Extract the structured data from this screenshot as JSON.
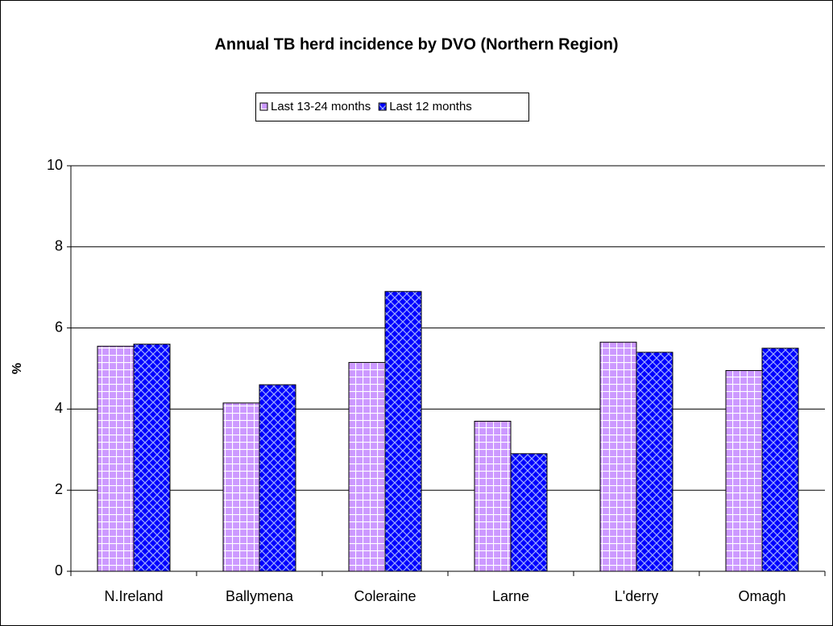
{
  "chart_data": {
    "type": "bar",
    "title": "Annual TB herd incidence by DVO (Northern Region)",
    "y_label": "%",
    "categories": [
      "N.Ireland",
      "Ballymena",
      "Coleraine",
      "Larne",
      "L'derry",
      "Omagh"
    ],
    "series": [
      {
        "name": "Last 13-24 months",
        "color": "#cc99ff",
        "values": [
          5.55,
          4.15,
          5.15,
          3.7,
          5.65,
          4.95
        ]
      },
      {
        "name": "Last 12 months",
        "color": "#0000ff",
        "values": [
          5.6,
          4.6,
          6.9,
          2.9,
          5.4,
          5.5
        ]
      }
    ],
    "ylim": [
      0,
      10
    ],
    "yticks": [
      0,
      2,
      4,
      6,
      8,
      10
    ],
    "grid": true,
    "legend": "top"
  }
}
